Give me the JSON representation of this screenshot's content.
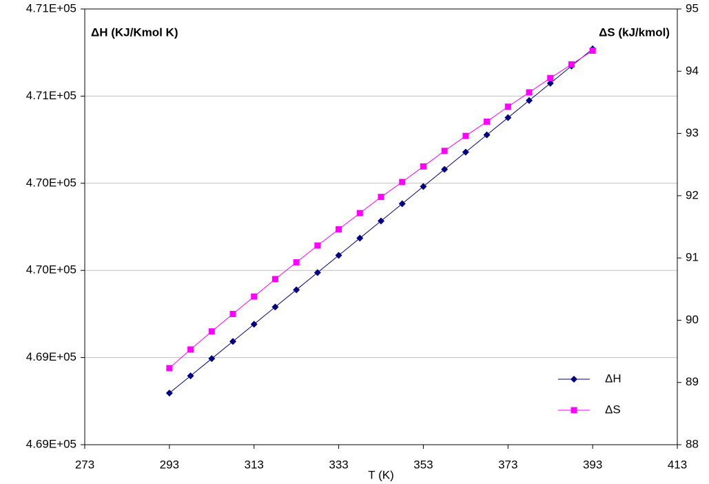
{
  "chart_data": {
    "type": "line",
    "x_label": "T (K)",
    "y_label": "ΔH (KJ/Kmol K)",
    "y2_label": "ΔS (kJ/kmol)",
    "x": [
      293,
      298,
      303,
      308,
      313,
      318,
      323,
      328,
      333,
      338,
      343,
      348,
      353,
      358,
      363,
      368,
      373,
      378,
      383,
      388,
      393
    ],
    "series": [
      {
        "name": "ΔH",
        "color": "#000080",
        "marker": "diamond",
        "values": [
          469237,
          469316,
          469395,
          469474,
          469553,
          469632,
          469711,
          469790,
          469869,
          469948,
          470027,
          470106,
          470185,
          470264,
          470343,
          470422,
          470501,
          470580,
          470659,
          470738,
          470817
        ]
      },
      {
        "name": "ΔS",
        "color": "#ff00ff",
        "marker": "square",
        "axis": "y2",
        "values": [
          89.23,
          89.53,
          89.82,
          90.1,
          90.38,
          90.66,
          90.93,
          91.2,
          91.46,
          91.72,
          91.98,
          92.22,
          92.47,
          92.72,
          92.96,
          93.19,
          93.43,
          93.66,
          93.89,
          94.11,
          94.33
        ]
      }
    ],
    "xlim": [
      273,
      413
    ],
    "xticks": [
      273,
      293,
      313,
      333,
      353,
      373,
      393,
      413
    ],
    "ylim": [
      469000,
      471000
    ],
    "yticks": [
      {
        "value": 469000,
        "label": "4.69E+05"
      },
      {
        "value": 469400,
        "label": "4.69E+05"
      },
      {
        "value": 469800,
        "label": "4.70E+05"
      },
      {
        "value": 470200,
        "label": "4.70E+05"
      },
      {
        "value": 470600,
        "label": "4.71E+05"
      },
      {
        "value": 471000,
        "label": "4.71E+05"
      }
    ],
    "y2lim": [
      88,
      95
    ],
    "y2ticks": [
      88,
      89,
      90,
      91,
      92,
      93,
      94,
      95
    ],
    "grid": true,
    "legend": "lower right"
  }
}
